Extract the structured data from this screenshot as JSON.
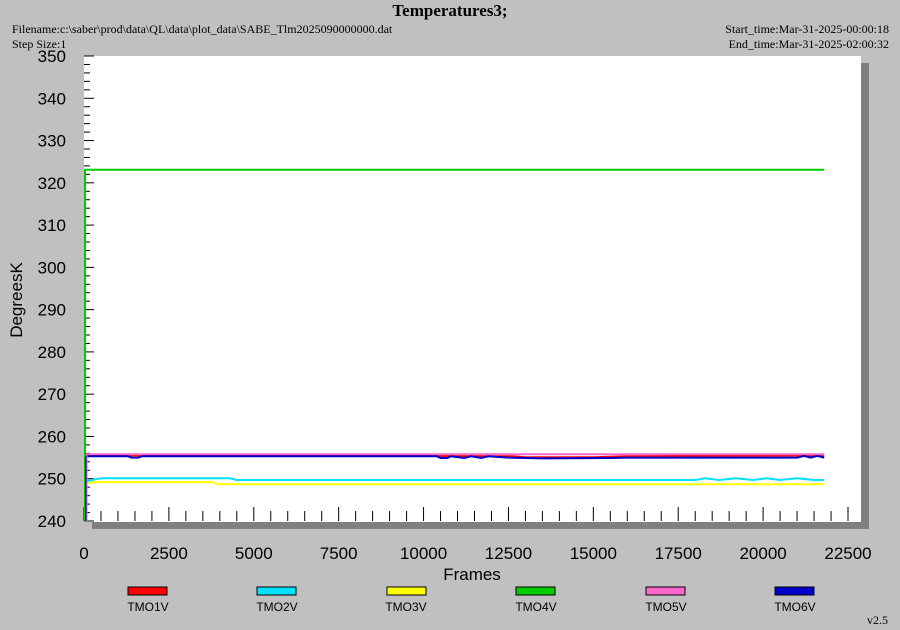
{
  "header": {
    "title": "Temperatures3;",
    "filename": "Filename:c:\\saber\\prod\\data\\QL\\data\\plot_data\\SABE_Tlm2025090000000.dat",
    "step_size": "Step Size:1",
    "start_time": "Start_time:Mar-31-2025-00:00:18",
    "end_time": "End_time:Mar-31-2025-02:00:32"
  },
  "footer": {
    "version": "v2.5"
  },
  "chart_data": {
    "type": "line",
    "title": "Temperatures3;",
    "xlabel": "Frames",
    "ylabel": "DegreesK",
    "xlim": [
      0,
      22500
    ],
    "ylim": [
      240,
      350
    ],
    "xticks": [
      0,
      2500,
      5000,
      7500,
      10000,
      12500,
      15000,
      17500,
      20000,
      22500
    ],
    "yticks": [
      240,
      250,
      260,
      270,
      280,
      290,
      300,
      310,
      320,
      330,
      340,
      350
    ],
    "grid": false,
    "legend_position": "bottom",
    "series": [
      {
        "name": "TMO1V",
        "color": "#ff0000",
        "x": [
          0,
          4000,
          10000,
          12600,
          13000,
          15000,
          16000,
          18000,
          21000,
          21800
        ],
        "y": [
          255.5,
          255.5,
          255.4,
          255.3,
          255.1,
          255.1,
          255.3,
          255.4,
          255.5,
          255.5
        ]
      },
      {
        "name": "TMO2V",
        "color": "#00e0ff",
        "x": [
          0,
          300,
          500,
          4300,
          4500,
          18000,
          18300,
          18700,
          19200,
          19700,
          20100,
          20500,
          21000,
          21500,
          21800
        ],
        "y": [
          249.3,
          249.8,
          250.1,
          250.1,
          249.7,
          249.7,
          250.1,
          249.7,
          250.1,
          249.7,
          250.1,
          249.7,
          250.1,
          249.7,
          249.7
        ]
      },
      {
        "name": "TMO3V",
        "color": "#ffff00",
        "x": [
          0,
          300,
          3800,
          3900,
          21800
        ],
        "y": [
          248.8,
          249.2,
          249.2,
          248.7,
          248.7
        ]
      },
      {
        "name": "TMO4V",
        "color": "#00cc00",
        "x": [
          0,
          21800
        ],
        "y": [
          323.1,
          323.1
        ]
      },
      {
        "name": "TMO5V",
        "color": "#ff66cc",
        "x": [
          0,
          21800
        ],
        "y": [
          255.8,
          255.8
        ]
      },
      {
        "name": "TMO6V",
        "color": "#0000cc",
        "x": [
          0,
          1300,
          1400,
          1600,
          1700,
          10400,
          10500,
          10700,
          10800,
          11200,
          11400,
          11700,
          11900,
          12500,
          13500,
          15500,
          16000,
          21000,
          21200,
          21400,
          21600,
          21800
        ],
        "y": [
          255.3,
          255.3,
          255.0,
          255.0,
          255.3,
          255.3,
          254.9,
          254.9,
          255.3,
          254.9,
          255.3,
          254.9,
          255.3,
          255.0,
          254.8,
          254.9,
          255.0,
          255.0,
          255.4,
          255.0,
          255.4,
          255.0
        ]
      }
    ]
  }
}
